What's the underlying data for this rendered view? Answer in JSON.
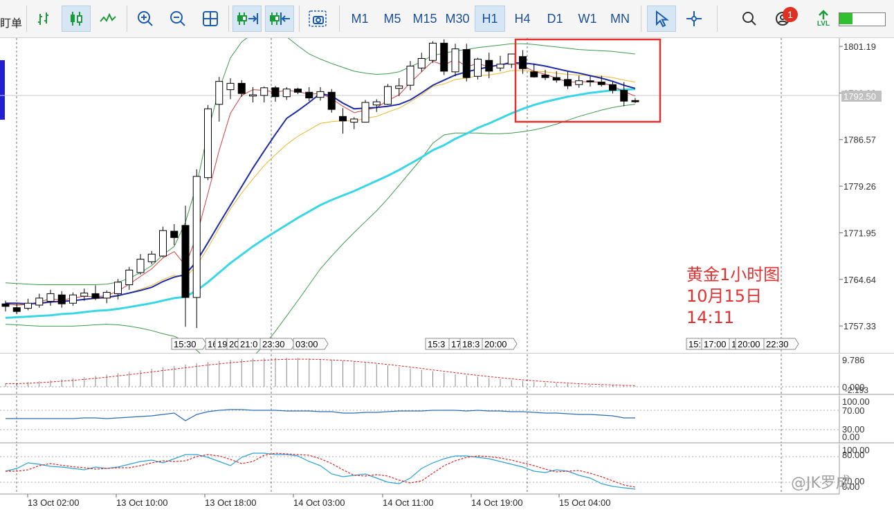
{
  "toolbar": {
    "left_label": "盯单",
    "timeframes": [
      "M1",
      "M5",
      "M15",
      "M30",
      "H1",
      "H4",
      "D1",
      "W1",
      "MN"
    ],
    "active_timeframe": "H1",
    "notification_count": "1",
    "level_label": "LVL",
    "level_fraction": 0.3
  },
  "price_axis": {
    "labels": [
      "1801.19",
      "1793.88",
      "1786.57",
      "1779.26",
      "1771.95",
      "1764.64",
      "1757.33"
    ],
    "current_price": "1792.50"
  },
  "time_tags_a": [
    "15:30",
    "16",
    "19",
    "20",
    "21:0",
    "23:30",
    "03:00"
  ],
  "time_tags_b": [
    "15:3",
    "17",
    "18:3",
    "20:00"
  ],
  "time_tags_c": [
    "15:",
    "17:00",
    "1",
    "20:00",
    "22:30"
  ],
  "time_axis": [
    "13 Oct 02:00",
    "13 Oct 10:00",
    "13 Oct 18:00",
    "14 Oct 03:00",
    "14 Oct 11:00",
    "14 Oct 19:00",
    "15 Oct 04:00"
  ],
  "sub1_axis": [
    "9.786",
    "0.000",
    "-2.193"
  ],
  "sub2_axis": [
    "100.00",
    "70.00",
    "30.00",
    "0.00"
  ],
  "sub3_axis": [
    "100.00",
    "80.00",
    "20.00",
    "0.00"
  ],
  "annotation": {
    "line1": "黄金1小时图",
    "line2": "10月15日",
    "line3": "14:11"
  },
  "watermark": "@JK罗成",
  "colors": {
    "annotation": "#e53030",
    "ma_fast": "#d23c3c",
    "ma_mid": "#f0b429",
    "ma_blue": "#1c2aa8",
    "ma_cyan": "#39d6e6",
    "bollinger": "#3a9a4a"
  },
  "chart_data": {
    "type": "candlestick",
    "ylim": [
      1753.0,
      1802.5
    ],
    "candles": [
      {
        "o": 1760.8,
        "h": 1761.3,
        "l": 1759.6,
        "c": 1760.4
      },
      {
        "o": 1760.2,
        "h": 1760.8,
        "l": 1759.2,
        "c": 1759.6
      },
      {
        "o": 1760.1,
        "h": 1761.6,
        "l": 1759.8,
        "c": 1760.9
      },
      {
        "o": 1760.6,
        "h": 1762.4,
        "l": 1760.2,
        "c": 1761.7
      },
      {
        "o": 1761.2,
        "h": 1763.0,
        "l": 1760.5,
        "c": 1762.4
      },
      {
        "o": 1762.2,
        "h": 1762.8,
        "l": 1760.2,
        "c": 1760.8
      },
      {
        "o": 1760.9,
        "h": 1762.6,
        "l": 1760.5,
        "c": 1762.2
      },
      {
        "o": 1762.0,
        "h": 1763.2,
        "l": 1761.3,
        "c": 1762.5
      },
      {
        "o": 1762.4,
        "h": 1763.7,
        "l": 1761.4,
        "c": 1761.7
      },
      {
        "o": 1761.7,
        "h": 1762.9,
        "l": 1760.9,
        "c": 1762.6
      },
      {
        "o": 1762.4,
        "h": 1764.7,
        "l": 1761.5,
        "c": 1764.2
      },
      {
        "o": 1763.8,
        "h": 1766.6,
        "l": 1763.0,
        "c": 1766.1
      },
      {
        "o": 1765.7,
        "h": 1768.6,
        "l": 1765.4,
        "c": 1767.8
      },
      {
        "o": 1767.4,
        "h": 1769.1,
        "l": 1767.0,
        "c": 1768.6
      },
      {
        "o": 1768.3,
        "h": 1772.9,
        "l": 1768.1,
        "c": 1772.3
      },
      {
        "o": 1772.2,
        "h": 1773.3,
        "l": 1770.0,
        "c": 1771.2
      },
      {
        "o": 1773.1,
        "h": 1776.2,
        "l": 1757.2,
        "c": 1761.8
      },
      {
        "o": 1761.8,
        "h": 1781.9,
        "l": 1757.0,
        "c": 1780.8
      },
      {
        "o": 1780.6,
        "h": 1792.0,
        "l": 1780.2,
        "c": 1791.4
      },
      {
        "o": 1792.1,
        "h": 1796.4,
        "l": 1789.4,
        "c": 1795.7
      },
      {
        "o": 1794.4,
        "h": 1796.2,
        "l": 1792.9,
        "c": 1795.4
      },
      {
        "o": 1795.4,
        "h": 1795.9,
        "l": 1793.3,
        "c": 1793.8
      },
      {
        "o": 1793.4,
        "h": 1794.8,
        "l": 1792.4,
        "c": 1793.6
      },
      {
        "o": 1793.5,
        "h": 1794.9,
        "l": 1792.4,
        "c": 1794.7
      },
      {
        "o": 1794.7,
        "h": 1795.0,
        "l": 1792.5,
        "c": 1793.3
      },
      {
        "o": 1793.3,
        "h": 1794.8,
        "l": 1792.8,
        "c": 1794.5
      },
      {
        "o": 1794.5,
        "h": 1794.7,
        "l": 1793.7,
        "c": 1794.0
      },
      {
        "o": 1794.0,
        "h": 1794.8,
        "l": 1792.6,
        "c": 1793.1
      },
      {
        "o": 1793.2,
        "h": 1794.8,
        "l": 1792.7,
        "c": 1794.1
      },
      {
        "o": 1794.0,
        "h": 1794.5,
        "l": 1790.8,
        "c": 1791.3
      },
      {
        "o": 1790.2,
        "h": 1791.5,
        "l": 1787.5,
        "c": 1789.5
      },
      {
        "o": 1789.3,
        "h": 1790.1,
        "l": 1788.2,
        "c": 1789.8
      },
      {
        "o": 1789.3,
        "h": 1792.8,
        "l": 1789.3,
        "c": 1792.4
      },
      {
        "o": 1792.0,
        "h": 1792.9,
        "l": 1790.9,
        "c": 1792.5
      },
      {
        "o": 1792.1,
        "h": 1795.3,
        "l": 1792.0,
        "c": 1794.9
      },
      {
        "o": 1794.6,
        "h": 1796.2,
        "l": 1793.4,
        "c": 1795.0
      },
      {
        "o": 1795.1,
        "h": 1798.9,
        "l": 1794.3,
        "c": 1798.1
      },
      {
        "o": 1797.8,
        "h": 1800.2,
        "l": 1797.2,
        "c": 1799.3
      },
      {
        "o": 1799.0,
        "h": 1802.0,
        "l": 1798.6,
        "c": 1801.7
      },
      {
        "o": 1801.7,
        "h": 1802.3,
        "l": 1796.7,
        "c": 1797.3
      },
      {
        "o": 1797.2,
        "h": 1801.6,
        "l": 1796.5,
        "c": 1800.8
      },
      {
        "o": 1800.7,
        "h": 1801.6,
        "l": 1795.7,
        "c": 1796.3
      },
      {
        "o": 1796.5,
        "h": 1799.4,
        "l": 1796.0,
        "c": 1799.2
      },
      {
        "o": 1799.0,
        "h": 1800.2,
        "l": 1796.2,
        "c": 1797.3
      },
      {
        "o": 1797.8,
        "h": 1799.7,
        "l": 1797.3,
        "c": 1798.4
      },
      {
        "o": 1798.4,
        "h": 1800.0,
        "l": 1797.8,
        "c": 1800.0
      },
      {
        "o": 1799.6,
        "h": 1800.6,
        "l": 1796.9,
        "c": 1797.7
      },
      {
        "o": 1797.2,
        "h": 1798.5,
        "l": 1796.3,
        "c": 1796.4
      },
      {
        "o": 1796.7,
        "h": 1797.5,
        "l": 1795.9,
        "c": 1796.3
      },
      {
        "o": 1796.3,
        "h": 1797.3,
        "l": 1795.5,
        "c": 1795.9
      },
      {
        "o": 1796.0,
        "h": 1797.2,
        "l": 1794.5,
        "c": 1795.0
      },
      {
        "o": 1795.2,
        "h": 1796.6,
        "l": 1794.7,
        "c": 1795.8
      },
      {
        "o": 1795.8,
        "h": 1796.5,
        "l": 1794.9,
        "c": 1795.6
      },
      {
        "o": 1795.6,
        "h": 1796.6,
        "l": 1794.9,
        "c": 1795.2
      },
      {
        "o": 1795.2,
        "h": 1795.7,
        "l": 1793.8,
        "c": 1794.3
      },
      {
        "o": 1794.3,
        "h": 1795.6,
        "l": 1791.8,
        "c": 1792.6
      },
      {
        "o": 1792.7,
        "h": 1793.1,
        "l": 1792.3,
        "c": 1792.5
      }
    ],
    "ma_blue": [
      1760.9,
      1760.9,
      1760.8,
      1760.9,
      1761.1,
      1761.2,
      1761.3,
      1761.5,
      1761.7,
      1761.8,
      1762.1,
      1762.5,
      1762.9,
      1763.4,
      1764.3,
      1765.0,
      1765.4,
      1767.5,
      1770.4,
      1773.4,
      1776.3,
      1779.2,
      1782.1,
      1784.8,
      1787.4,
      1789.9,
      1791.1,
      1792.4,
      1793.8,
      1793.4,
      1792.3,
      1791.4,
      1791.5,
      1791.6,
      1791.8,
      1792.1,
      1792.8,
      1793.9,
      1795.1,
      1795.9,
      1796.7,
      1797.2,
      1797.6,
      1798.0,
      1798.3,
      1798.6,
      1798.6,
      1798.4,
      1798.1,
      1797.7,
      1797.3,
      1797.0,
      1796.6,
      1796.2,
      1795.7,
      1795.1,
      1794.6
    ],
    "ma_fast": [
      1760.8,
      1760.6,
      1760.7,
      1761.1,
      1761.6,
      1761.4,
      1761.7,
      1762.0,
      1761.9,
      1762.1,
      1762.8,
      1763.9,
      1765.1,
      1766.3,
      1768.0,
      1769.0,
      1766.8,
      1771.5,
      1778.1,
      1784.9,
      1790.7,
      1793.5,
      1794.4,
      1794.3,
      1794.0,
      1794.3,
      1794.1,
      1793.7,
      1793.8,
      1793.0,
      1791.8,
      1790.8,
      1791.2,
      1791.6,
      1792.7,
      1793.6,
      1795.5,
      1797.2,
      1798.9,
      1798.2,
      1799.2,
      1798.0,
      1798.5,
      1798.0,
      1798.3,
      1798.8,
      1798.1,
      1797.3,
      1796.8,
      1796.2,
      1795.6,
      1795.6,
      1795.7,
      1795.5,
      1795.0,
      1794.1,
      1793.4
    ],
    "ma_mid": [
      1760.7,
      1760.7,
      1760.7,
      1760.8,
      1761.0,
      1761.1,
      1761.3,
      1761.5,
      1761.6,
      1761.7,
      1762.0,
      1762.5,
      1763.1,
      1763.7,
      1764.6,
      1765.3,
      1765.0,
      1766.8,
      1769.6,
      1772.7,
      1775.7,
      1778.2,
      1780.4,
      1782.5,
      1784.2,
      1785.8,
      1787.1,
      1788.1,
      1789.1,
      1789.4,
      1789.5,
      1789.5,
      1789.9,
      1790.2,
      1790.9,
      1791.5,
      1792.5,
      1793.6,
      1794.9,
      1795.3,
      1796.0,
      1796.2,
      1796.6,
      1796.7,
      1797.0,
      1797.4,
      1797.4,
      1797.3,
      1797.2,
      1797.0,
      1796.8,
      1796.7,
      1796.6,
      1796.5,
      1796.3,
      1795.9,
      1795.6
    ],
    "ma_cyan": [
      1758.6,
      1758.7,
      1758.8,
      1758.9,
      1759.0,
      1759.2,
      1759.3,
      1759.5,
      1759.7,
      1759.8,
      1760.0,
      1760.3,
      1760.6,
      1760.9,
      1761.3,
      1761.7,
      1761.9,
      1762.9,
      1764.2,
      1765.7,
      1767.2,
      1768.5,
      1769.8,
      1771.0,
      1772.1,
      1773.2,
      1774.3,
      1775.3,
      1776.3,
      1777.1,
      1777.8,
      1778.5,
      1779.3,
      1780.1,
      1780.9,
      1781.8,
      1782.8,
      1783.8,
      1784.9,
      1785.7,
      1786.7,
      1787.5,
      1788.4,
      1789.1,
      1789.9,
      1790.7,
      1791.4,
      1792.0,
      1792.5,
      1792.9,
      1793.3,
      1793.6,
      1793.9,
      1794.1,
      1794.3,
      1794.4,
      1794.5
    ],
    "boll_upper": [
      1764.1,
      1764.0,
      1763.9,
      1763.8,
      1763.8,
      1763.8,
      1763.8,
      1763.8,
      1763.8,
      1763.9,
      1764.2,
      1764.8,
      1765.7,
      1766.8,
      1768.5,
      1769.8,
      1773.6,
      1779.5,
      1787.8,
      1794.5,
      1799.4,
      1801.9,
      1803.2,
      1803.4,
      1803.2,
      1802.7,
      1801.3,
      1800.0,
      1799.2,
      1798.5,
      1797.9,
      1797.3,
      1797.0,
      1796.8,
      1796.9,
      1797.2,
      1798.0,
      1798.8,
      1799.8,
      1800.1,
      1800.5,
      1800.7,
      1801.0,
      1801.2,
      1801.4,
      1801.6,
      1801.6,
      1801.5,
      1801.3,
      1801.1,
      1800.9,
      1800.7,
      1800.6,
      1800.5,
      1800.4,
      1800.2,
      1800.0
    ],
    "boll_lower": [
      1757.6,
      1757.5,
      1757.4,
      1757.3,
      1757.3,
      1757.3,
      1757.3,
      1757.4,
      1757.5,
      1757.6,
      1757.5,
      1757.3,
      1757.0,
      1756.6,
      1756.1,
      1755.7,
      1754.9,
      1753.5,
      1752.0,
      1751.0,
      1750.8,
      1751.4,
      1752.5,
      1754.3,
      1756.5,
      1758.9,
      1761.3,
      1763.8,
      1766.3,
      1768.3,
      1770.2,
      1772.0,
      1773.7,
      1775.4,
      1777.3,
      1779.4,
      1781.5,
      1783.6,
      1786.0,
      1787.3,
      1787.6,
      1787.6,
      1787.6,
      1787.5,
      1787.5,
      1787.6,
      1787.8,
      1788.1,
      1788.5,
      1789.0,
      1789.6,
      1790.2,
      1790.7,
      1791.2,
      1791.6,
      1791.9,
      1792.1
    ]
  }
}
